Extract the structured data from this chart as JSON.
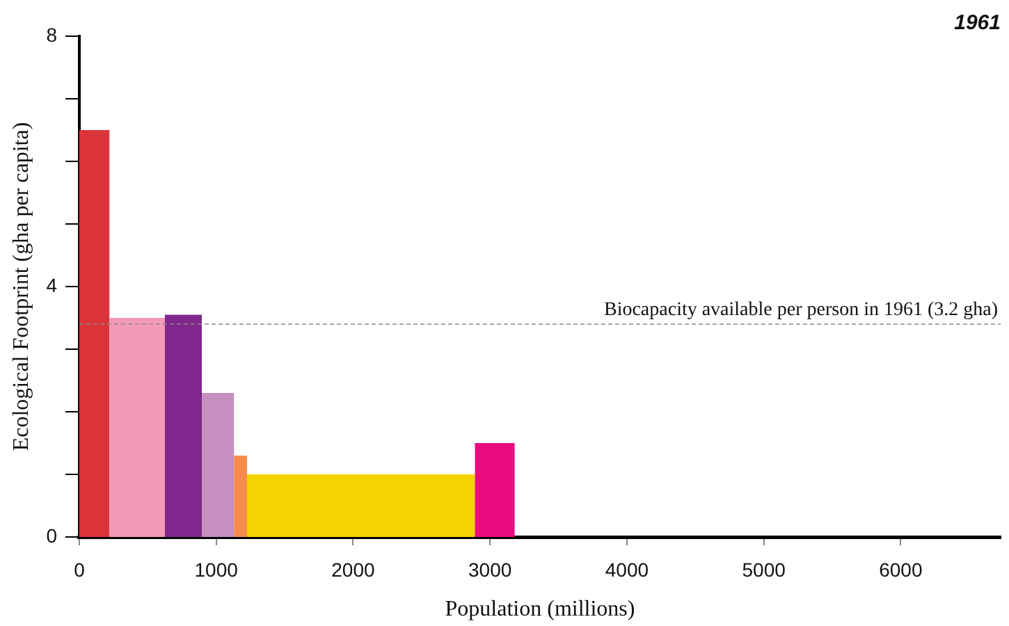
{
  "chart_data": {
    "type": "histogram",
    "title": "1961",
    "xlabel": "Population (millions)",
    "ylabel": "Ecological Footprint (gha per capita)",
    "bins": [
      0,
      220,
      625,
      895,
      1130,
      1225,
      2890,
      3180
    ],
    "values": [
      6.5,
      3.5,
      3.55,
      2.3,
      1.3,
      1.0,
      1.5
    ],
    "colors": [
      "#dc343b",
      "#f39ab7",
      "#7f278c",
      "#c78fc0",
      "#f88c4c",
      "#f5d200",
      "#ea0a7f"
    ],
    "xlim": [
      0,
      6730
    ],
    "xticks": [
      0,
      1000,
      2000,
      3000,
      4000,
      5000,
      6000
    ],
    "ylim": [
      0,
      8
    ],
    "yticks": [
      0,
      {
        "value": 1,
        "label": null
      },
      {
        "value": 2,
        "label": null
      },
      {
        "value": 3,
        "label": null
      },
      4,
      {
        "value": 5,
        "label": null
      },
      {
        "value": 6,
        "label": null
      },
      {
        "value": 7,
        "label": null
      },
      8
    ],
    "ref_lines": [
      {
        "axis": "y",
        "value": 3.4,
        "label": "Biocapacity available per person in 1961 (3.2 gha)",
        "color": "#888888",
        "line_style": "dashed"
      }
    ],
    "grid": false,
    "legend": false
  }
}
